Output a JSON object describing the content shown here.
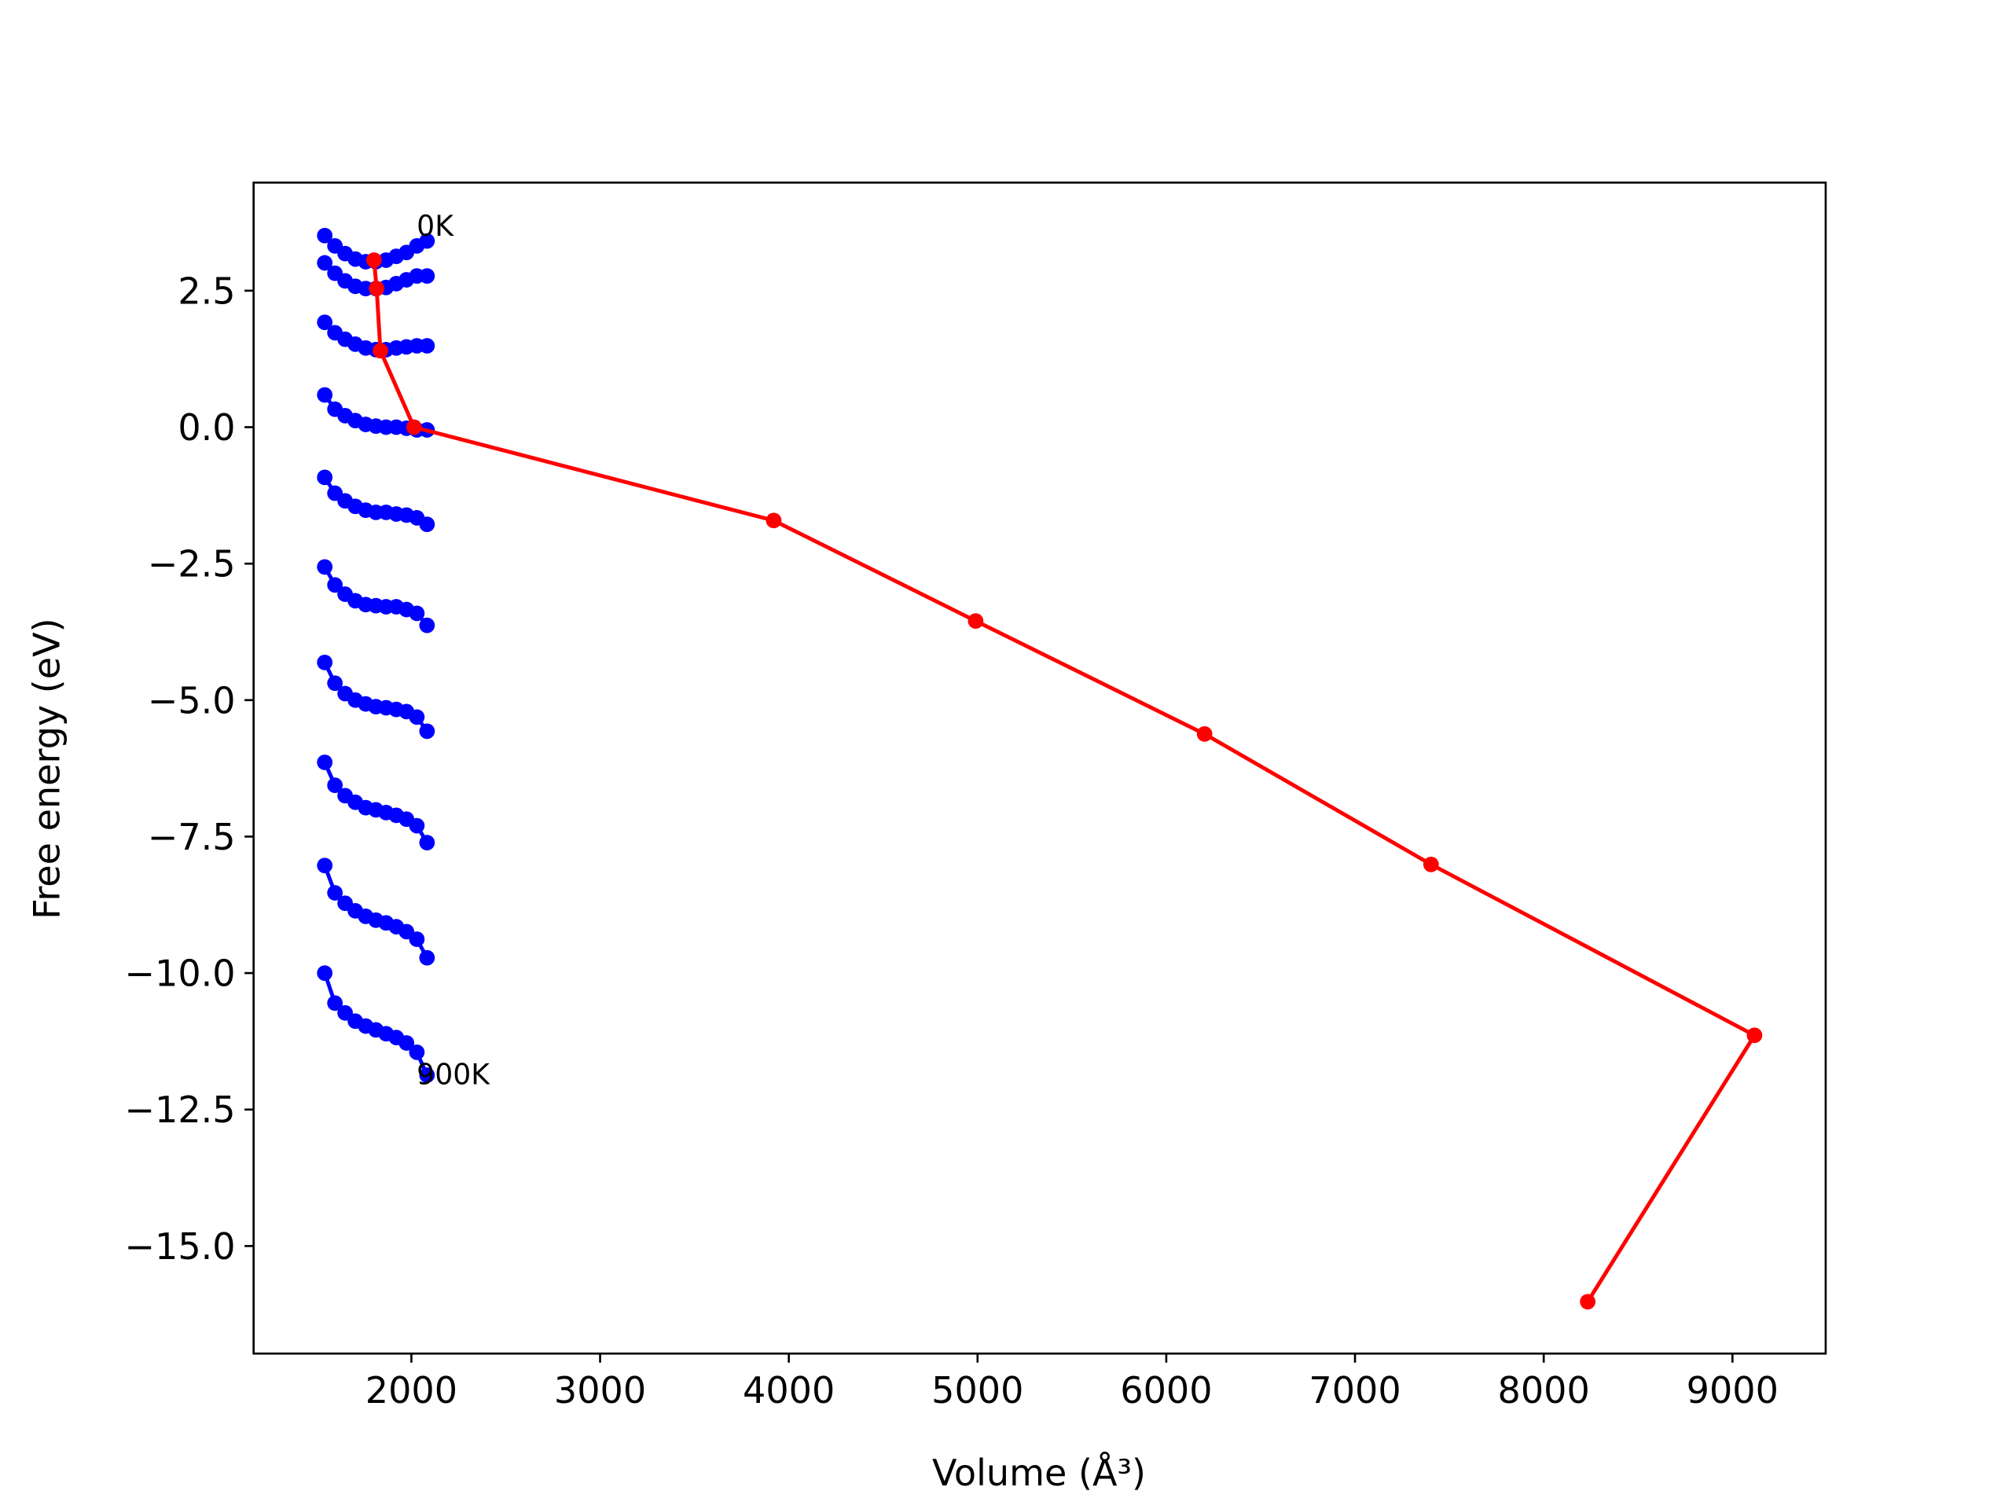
{
  "chart_data": {
    "type": "line",
    "xlabel": "Volume (Å³)",
    "ylabel": "Free energy (eV)",
    "xlim": [
      1164,
      9494
    ],
    "ylim": [
      -16.97,
      4.48
    ],
    "xticks": [
      2000,
      3000,
      4000,
      5000,
      6000,
      7000,
      8000,
      9000
    ],
    "yticks": [
      {
        "value": -15,
        "label": "−15.0"
      },
      {
        "value": -12.5,
        "label": "−12.5"
      },
      {
        "value": -10,
        "label": "−10.0"
      },
      {
        "value": -7.5,
        "label": "−7.5"
      },
      {
        "value": -5,
        "label": "−5.0"
      },
      {
        "value": -2.5,
        "label": "−2.5"
      },
      {
        "value": 0,
        "label": "0.0"
      },
      2.5
    ],
    "annotations": [
      "0K",
      "900K"
    ],
    "series": [
      {
        "color": "#0000ff",
        "marker": true,
        "x": [
          1541,
          1595,
          1649,
          1703,
          1758,
          1812,
          1866,
          1920,
          1974,
          2029,
          2083
        ],
        "values": [
          3.51,
          3.32,
          3.18,
          3.08,
          3.03,
          3.03,
          3.06,
          3.13,
          3.2,
          3.32,
          3.41
        ]
      },
      {
        "color": "#0000ff",
        "marker": true,
        "x": [
          1541,
          1595,
          1649,
          1703,
          1758,
          1812,
          1866,
          1920,
          1974,
          2029,
          2083
        ],
        "values": [
          3.01,
          2.82,
          2.68,
          2.58,
          2.54,
          2.54,
          2.56,
          2.63,
          2.7,
          2.77,
          2.77
        ]
      },
      {
        "color": "#0000ff",
        "marker": true,
        "x": [
          1541,
          1595,
          1649,
          1703,
          1758,
          1812,
          1866,
          1920,
          1974,
          2029,
          2083
        ],
        "values": [
          1.92,
          1.73,
          1.61,
          1.52,
          1.45,
          1.42,
          1.42,
          1.45,
          1.47,
          1.49,
          1.49
        ]
      },
      {
        "color": "#0000ff",
        "marker": true,
        "x": [
          1541,
          1595,
          1649,
          1703,
          1758,
          1812,
          1866,
          1920,
          1974,
          2029,
          2083
        ],
        "values": [
          0.59,
          0.33,
          0.21,
          0.12,
          0.05,
          0.02,
          0,
          0,
          -0.02,
          -0.05,
          -0.05
        ]
      },
      {
        "color": "#0000ff",
        "marker": true,
        "x": [
          1541,
          1595,
          1649,
          1703,
          1758,
          1812,
          1866,
          1920,
          1974,
          2029,
          2083
        ],
        "values": [
          -0.92,
          -1.21,
          -1.35,
          -1.45,
          -1.52,
          -1.56,
          -1.56,
          -1.59,
          -1.61,
          -1.66,
          -1.78
        ]
      },
      {
        "color": "#0000ff",
        "marker": true,
        "x": [
          1541,
          1595,
          1649,
          1703,
          1758,
          1812,
          1866,
          1920,
          1974,
          2029,
          2083
        ],
        "values": [
          -2.56,
          -2.89,
          -3.06,
          -3.18,
          -3.25,
          -3.27,
          -3.29,
          -3.29,
          -3.34,
          -3.41,
          -3.63
        ]
      },
      {
        "color": "#0000ff",
        "marker": true,
        "x": [
          1541,
          1595,
          1649,
          1703,
          1758,
          1812,
          1866,
          1920,
          1974,
          2029,
          2083
        ],
        "values": [
          -4.31,
          -4.69,
          -4.88,
          -5.0,
          -5.07,
          -5.12,
          -5.14,
          -5.17,
          -5.21,
          -5.31,
          -5.57
        ]
      },
      {
        "color": "#0000ff",
        "marker": true,
        "x": [
          1541,
          1595,
          1649,
          1703,
          1758,
          1812,
          1866,
          1920,
          1974,
          2029,
          2083
        ],
        "values": [
          -6.14,
          -6.56,
          -6.75,
          -6.87,
          -6.97,
          -7.01,
          -7.06,
          -7.11,
          -7.18,
          -7.3,
          -7.61
        ]
      },
      {
        "color": "#0000ff",
        "marker": true,
        "x": [
          1541,
          1595,
          1649,
          1703,
          1758,
          1812,
          1866,
          1920,
          1974,
          2029,
          2083
        ],
        "values": [
          -8.03,
          -8.53,
          -8.72,
          -8.86,
          -8.96,
          -9.03,
          -9.08,
          -9.15,
          -9.24,
          -9.38,
          -9.72
        ]
      },
      {
        "color": "#0000ff",
        "marker": true,
        "x": [
          1541,
          1595,
          1649,
          1703,
          1758,
          1812,
          1866,
          1920,
          1974,
          2029,
          2083
        ],
        "values": [
          -10.0,
          -10.55,
          -10.73,
          -10.88,
          -10.97,
          -11.04,
          -11.11,
          -11.18,
          -11.28,
          -11.45,
          -11.87
        ]
      },
      {
        "color": "#ff0000",
        "marker": true,
        "x": [
          1802,
          1816,
          1836,
          2014,
          3920,
          4990,
          6203,
          7403,
          9117,
          8233
        ],
        "values": [
          3.06,
          2.54,
          1.4,
          0,
          -1.71,
          -3.55,
          -5.62,
          -8.01,
          -11.14,
          -16.02
        ]
      }
    ]
  }
}
